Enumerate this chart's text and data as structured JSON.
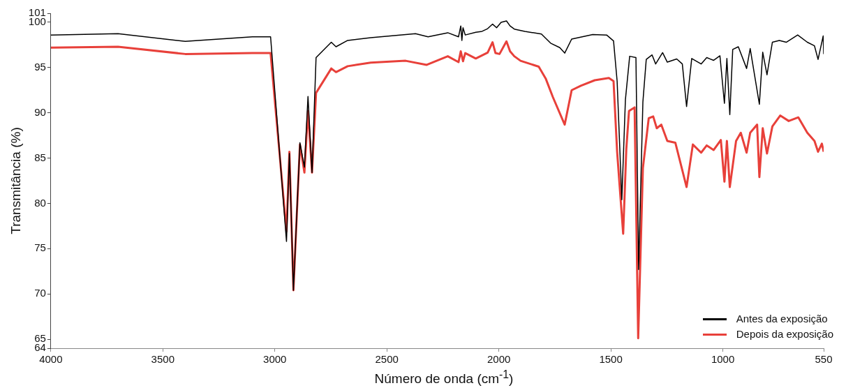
{
  "chart_data": {
    "type": "line",
    "xlabel": "Número de onda (cm$^{-1}$)",
    "ylabel": "Transmitância (%)",
    "xlim": [
      4000,
      550
    ],
    "xticks": [
      4000,
      3500,
      3000,
      2500,
      2000,
      1500,
      1000,
      550
    ],
    "ylim": [
      64,
      101
    ],
    "yticks": [
      64,
      65,
      70,
      75,
      80,
      85,
      90,
      95,
      100,
      101
    ],
    "legend": "bottom right",
    "marker": "none",
    "line_style": "solid",
    "series": [
      {
        "name": "Antes da exposição",
        "color": "#000000",
        "x": [
          4000,
          3700,
          3400,
          3100,
          3019,
          2948,
          2935,
          2917,
          2888,
          2868,
          2852,
          2834,
          2816,
          2748,
          2727,
          2675,
          2572,
          2372,
          2316,
          2228,
          2180,
          2170,
          2165,
          2160,
          2150,
          2103,
          2075,
          2050,
          2028,
          2010,
          1990,
          1966,
          1950,
          1931,
          1884,
          1810,
          1769,
          1728,
          1706,
          1675,
          1581,
          1519,
          1488,
          1472,
          1451,
          1435,
          1416,
          1388,
          1376,
          1357,
          1342,
          1316,
          1300,
          1269,
          1248,
          1206,
          1181,
          1162,
          1139,
          1097,
          1072,
          1041,
          1013,
          993,
          982,
          969,
          956,
          931,
          894,
          878,
          837,
          822,
          803,
          779,
          748,
          717,
          666,
          623,
          591,
          575,
          552,
          550
        ],
        "values": [
          98.6,
          98.75,
          97.9,
          98.4,
          98.4,
          75.8,
          85.5,
          70.4,
          86.7,
          84.0,
          91.8,
          83.4,
          96.1,
          97.8,
          97.3,
          98.0,
          98.3,
          98.75,
          98.4,
          98.85,
          98.4,
          99.6,
          98.0,
          99.4,
          98.6,
          98.9,
          99.0,
          99.3,
          99.8,
          99.4,
          100.0,
          100.15,
          99.6,
          99.25,
          99.0,
          98.7,
          97.7,
          97.2,
          96.6,
          98.15,
          98.65,
          98.6,
          97.95,
          93.5,
          80.4,
          91.45,
          96.25,
          96.1,
          72.7,
          91.2,
          95.9,
          96.4,
          95.4,
          96.65,
          95.6,
          95.95,
          95.4,
          90.7,
          96.0,
          95.4,
          96.1,
          95.8,
          96.3,
          91.05,
          96.0,
          89.8,
          97.0,
          97.3,
          94.9,
          97.1,
          90.95,
          96.7,
          94.2,
          97.8,
          98.0,
          97.8,
          98.6,
          97.8,
          97.4,
          95.9,
          98.5,
          96.5
        ]
      },
      {
        "name": "Depois da exposição",
        "color": "#e8403a",
        "x": [
          4000,
          3700,
          3400,
          3100,
          3019,
          2948,
          2935,
          2917,
          2888,
          2868,
          2852,
          2834,
          2816,
          2748,
          2727,
          2675,
          2572,
          2416,
          2322,
          2228,
          2180,
          2170,
          2160,
          2150,
          2103,
          2050,
          2028,
          2015,
          1997,
          1966,
          1950,
          1931,
          1903,
          1822,
          1791,
          1759,
          1706,
          1675,
          1634,
          1572,
          1509,
          1488,
          1472,
          1445,
          1431,
          1419,
          1394,
          1378,
          1357,
          1331,
          1311,
          1295,
          1275,
          1248,
          1212,
          1162,
          1134,
          1097,
          1072,
          1041,
          1009,
          993,
          982,
          969,
          941,
          920,
          894,
          878,
          847,
          837,
          822,
          803,
          779,
          744,
          706,
          663,
          623,
          591,
          575,
          558,
          550
        ],
        "values": [
          97.2,
          97.3,
          96.5,
          96.6,
          96.6,
          76.9,
          85.7,
          70.4,
          86.5,
          83.4,
          90.2,
          83.4,
          92.2,
          94.9,
          94.5,
          95.15,
          95.55,
          95.75,
          95.3,
          96.25,
          95.6,
          96.8,
          95.7,
          96.6,
          96.0,
          96.65,
          97.8,
          96.6,
          96.5,
          97.9,
          96.8,
          96.25,
          95.75,
          95.1,
          93.8,
          91.75,
          88.7,
          92.5,
          93.0,
          93.6,
          93.85,
          93.5,
          85.7,
          76.65,
          86.0,
          90.2,
          90.6,
          65.1,
          83.9,
          89.4,
          89.6,
          88.3,
          88.7,
          86.9,
          86.7,
          81.8,
          86.5,
          85.6,
          86.4,
          85.9,
          87.0,
          82.4,
          86.9,
          81.8,
          86.9,
          87.8,
          85.6,
          87.8,
          88.7,
          82.9,
          88.3,
          85.5,
          88.5,
          89.7,
          89.1,
          89.5,
          87.8,
          86.9,
          85.7,
          86.6,
          85.7
        ]
      }
    ]
  }
}
